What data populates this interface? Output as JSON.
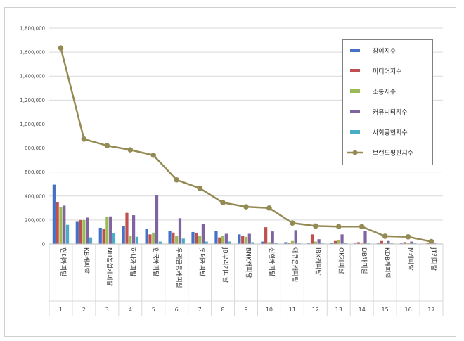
{
  "chart_data": {
    "type": "bar",
    "y_ticks": [
      "0",
      "200,000",
      "400,000",
      "600,000",
      "800,000",
      "1,000,000",
      "1,200,000",
      "1,400,000",
      "1,600,000",
      "1,800,000"
    ],
    "ylim": [
      0,
      1800000
    ],
    "categories": [
      "현대캐피탈",
      "KB캐피탈",
      "NH농협캐피탈",
      "하나캐피탈",
      "한국캐피탈",
      "우리금융캐피탈",
      "롯데캐피탈",
      "JB우리캐피탈",
      "BNK캐피탈",
      "신한캐피탈",
      "애큐온캐피탈",
      "IBK캐피탈",
      "OK캐피탈",
      "DB캐피탈",
      "KDB캐피탈",
      "M캐피탈",
      "JT캐피탈"
    ],
    "ranks": [
      "1",
      "2",
      "3",
      "4",
      "5",
      "6",
      "7",
      "8",
      "9",
      "10",
      "11",
      "12",
      "13",
      "14",
      "15",
      "16",
      "17"
    ],
    "series": [
      {
        "name": "참여지수",
        "kind": "bar",
        "color": "#4472c4",
        "values": [
          495000,
          185000,
          135000,
          150000,
          125000,
          110000,
          100000,
          110000,
          80000,
          20000,
          15000,
          5000,
          10000,
          5000,
          5000,
          5000,
          3000
        ]
      },
      {
        "name": "미디어지수",
        "kind": "bar",
        "color": "#c0504d",
        "values": [
          350000,
          200000,
          125000,
          260000,
          80000,
          95000,
          90000,
          55000,
          65000,
          140000,
          10000,
          80000,
          25000,
          15000,
          25000,
          15000,
          10000
        ]
      },
      {
        "name": "소통지수",
        "kind": "bar",
        "color": "#9bbb59",
        "values": [
          305000,
          200000,
          225000,
          65000,
          95000,
          70000,
          65000,
          70000,
          60000,
          15000,
          25000,
          20000,
          30000,
          10000,
          10000,
          10000,
          5000
        ]
      },
      {
        "name": "커뮤니티지수",
        "kind": "bar",
        "color": "#8064a2",
        "values": [
          320000,
          220000,
          230000,
          240000,
          405000,
          215000,
          170000,
          85000,
          85000,
          105000,
          115000,
          40000,
          80000,
          110000,
          25000,
          20000,
          5000
        ]
      },
      {
        "name": "사회공헌지수",
        "kind": "bar",
        "color": "#4bacc6",
        "values": [
          160000,
          55000,
          90000,
          60000,
          20000,
          45000,
          20000,
          20000,
          15000,
          10000,
          5000,
          5000,
          10000,
          5000,
          5000,
          5000,
          3000
        ]
      },
      {
        "name": "브랜드평판지수",
        "kind": "line",
        "color": "#948a54",
        "values": [
          1635000,
          875000,
          820000,
          785000,
          740000,
          535000,
          465000,
          345000,
          310000,
          300000,
          175000,
          150000,
          145000,
          145000,
          65000,
          60000,
          20000
        ]
      }
    ],
    "legend_position": "right",
    "grid": true
  }
}
